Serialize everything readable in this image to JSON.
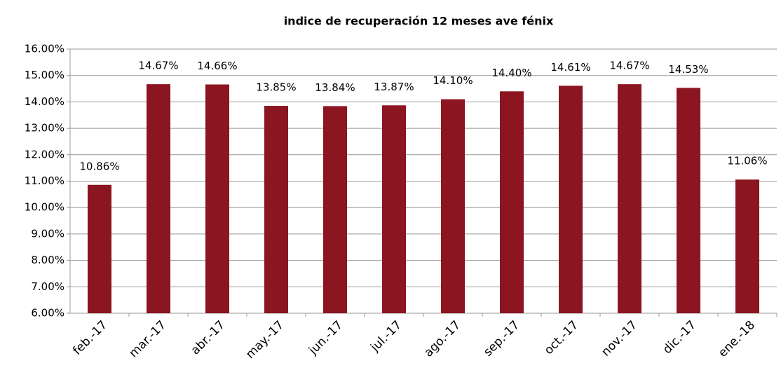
{
  "chart_data": {
    "type": "bar",
    "title": "indice de recuperación 12 meses ave fénix",
    "categories": [
      "feb.-17",
      "mar.-17",
      "abr.-17",
      "may.-17",
      "jun.-17",
      "jul.-17",
      "ago.-17",
      "sep.-17",
      "oct.-17",
      "nov.-17",
      "dic.-17",
      "ene.-18"
    ],
    "values": [
      10.86,
      14.67,
      14.66,
      13.85,
      13.84,
      13.87,
      14.1,
      14.4,
      14.61,
      14.67,
      14.53,
      11.06
    ],
    "value_labels": [
      "10.86%",
      "14.67%",
      "14.66%",
      "13.85%",
      "13.84%",
      "13.87%",
      "14.10%",
      "14.40%",
      "14.61%",
      "14.67%",
      "14.53%",
      "11.06%"
    ],
    "color": "#8b1520",
    "ylim": [
      6,
      16
    ],
    "yticks": [
      {
        "value": 6,
        "label": "6.00%"
      },
      {
        "value": 7,
        "label": "7.00%"
      },
      {
        "value": 8,
        "label": "8.00%"
      },
      {
        "value": 9,
        "label": "9.00%"
      },
      {
        "value": 10,
        "label": "10.00%"
      },
      {
        "value": 11,
        "label": "11.00%"
      },
      {
        "value": 12,
        "label": "12.00%"
      },
      {
        "value": 13,
        "label": "13.00%"
      },
      {
        "value": 14,
        "label": "14.00%"
      },
      {
        "value": 15,
        "label": "15.00%"
      },
      {
        "value": 16,
        "label": "16.00%"
      }
    ],
    "grid": true
  }
}
